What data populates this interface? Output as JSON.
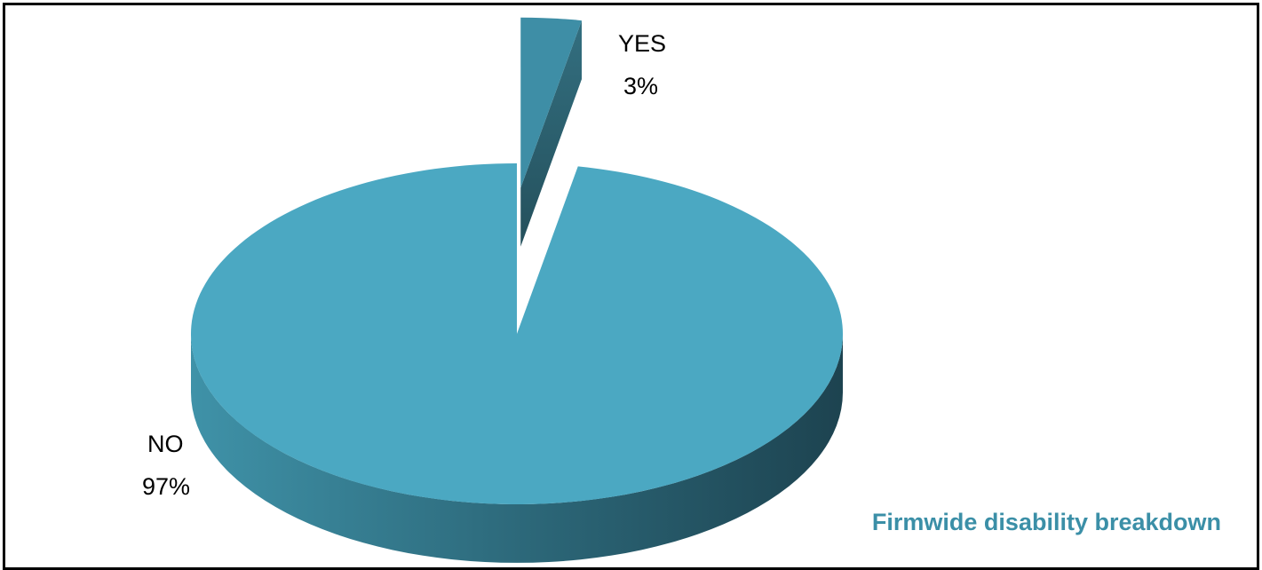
{
  "chart_data": {
    "type": "pie",
    "title": "Firmwide disability breakdown",
    "style": "3d-exploded",
    "slices": [
      {
        "label": "YES",
        "value": 3,
        "display": "3%"
      },
      {
        "label": "NO",
        "value": 97,
        "display": "97%"
      }
    ]
  },
  "colors": {
    "top": "#4BA8C2",
    "side_light": "#3F92A8",
    "side_dark": "#1D4350",
    "title": "#3B8FA7",
    "border": "#000000"
  }
}
